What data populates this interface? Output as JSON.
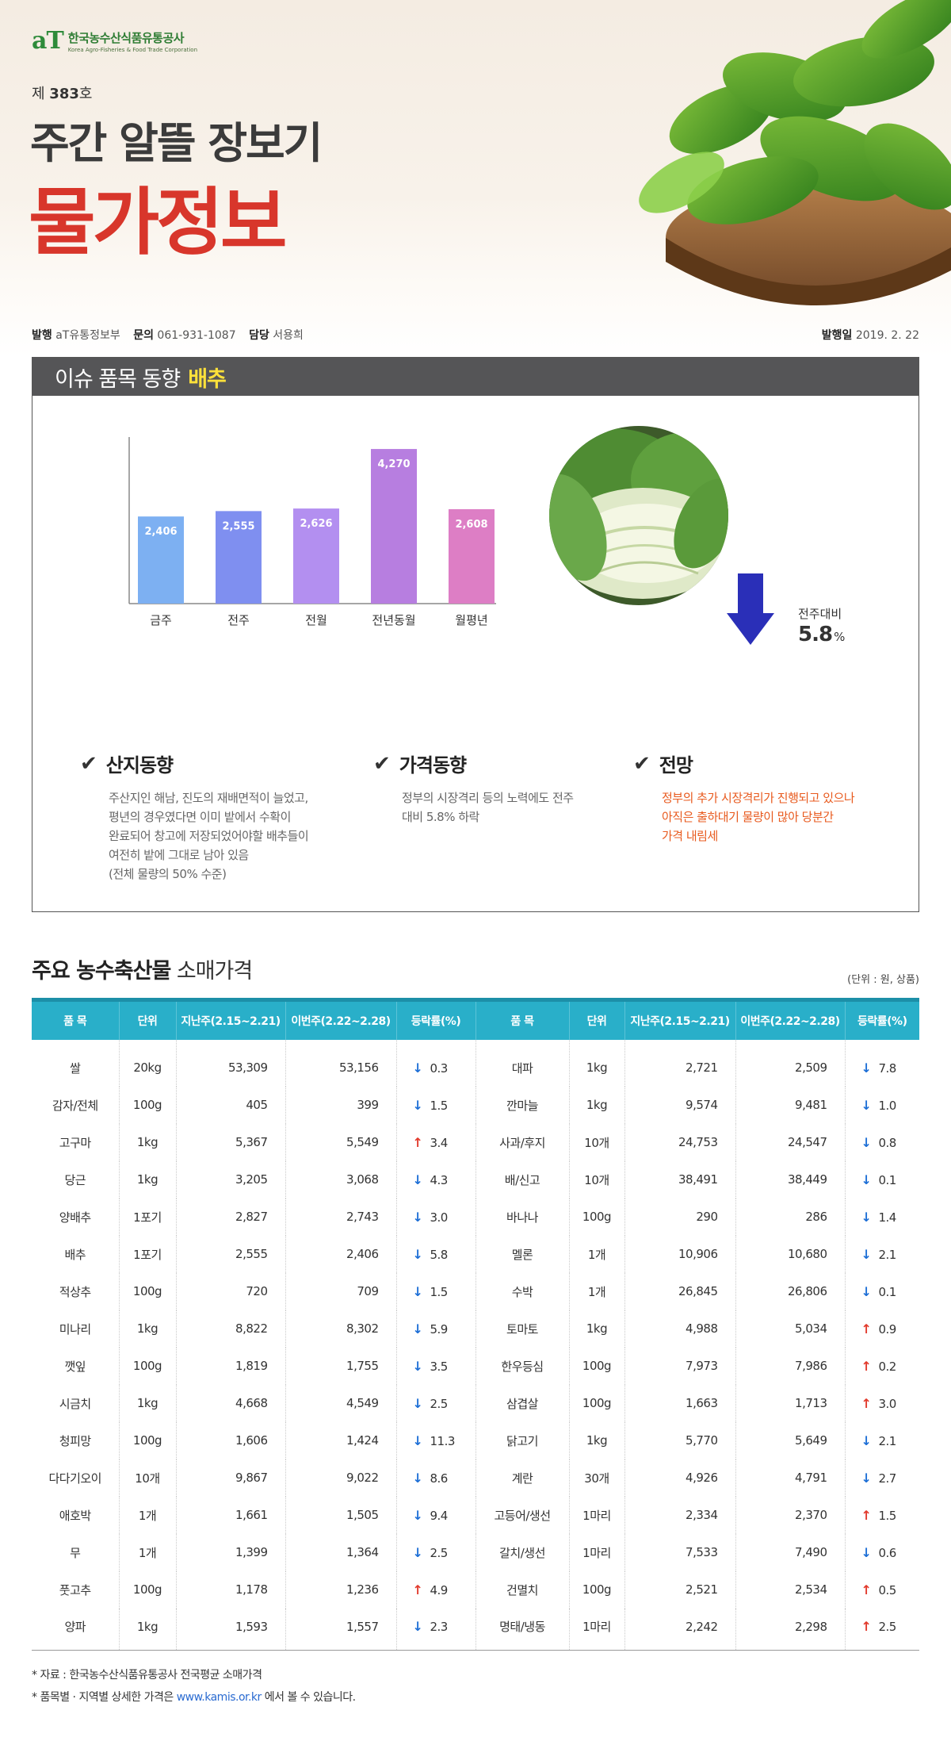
{
  "header": {
    "logo_mark": "aT",
    "logo_ko": "한국농수산식품유통공사",
    "logo_en": "Korea Agro-Fisheries & Food Trade Corporation",
    "issue_prefix": "제",
    "issue_number": "383",
    "issue_suffix": "호",
    "title": "주간 알뜰 장보기",
    "subtitle": "물가정보"
  },
  "pubinfo": {
    "publisher_label": "발행",
    "publisher": "aT유통정보부",
    "contact_label": "문의",
    "contact": "061-931-1087",
    "manager_label": "담당",
    "manager": "서용희",
    "date_label": "발행일",
    "date": "2019. 2. 22"
  },
  "issue": {
    "heading": "이슈 품목 동향",
    "item": "배추",
    "change_label": "전주대비",
    "change_value": "5.8",
    "change_unit": "%",
    "change_direction": "down",
    "blocks": [
      {
        "title": "산지동향",
        "body": "주산지인 해남, 진도의 재배면적이 늘었고,\n평년의 경우였다면 이미 밭에서 수확이\n완료되어 창고에 저장되었어야할 배추들이\n여전히 밭에 그대로 남아 있음\n(전체 물량의 50% 수준)"
      },
      {
        "title": "가격동향",
        "body": "정부의 시장격리 등의 노력에도 전주\n대비 5.8% 하락"
      },
      {
        "title": "전망",
        "body": "정부의 추가 시장격리가 진행되고 있으나\n아직은 출하대기 물량이 많아 당분간\n가격 내림세"
      }
    ]
  },
  "chart_data": {
    "type": "bar",
    "categories": [
      "금주",
      "전주",
      "전월",
      "전년동월",
      "월평년"
    ],
    "values": [
      2406,
      2555,
      2626,
      4270,
      2608
    ],
    "value_labels": [
      "2,406",
      "2,555",
      "2,626",
      "4,270",
      "2,608"
    ],
    "colors": [
      "#7db0f2",
      "#7f8ff0",
      "#b38ff0",
      "#b77ee0",
      "#dd7ec5"
    ],
    "title": "",
    "xlabel": "",
    "ylabel": "",
    "grid": false
  },
  "table": {
    "title_bold": "주요 농수축산물",
    "title_rest": "소매가격",
    "unit_note": "(단위 : 원, 상품)",
    "headers": [
      "품 목",
      "단위",
      "지난주(2.15~2.21)",
      "이번주(2.22~2.28)",
      "등락률(%)",
      "품 목",
      "단위",
      "지난주(2.15~2.21)",
      "이번주(2.22~2.28)",
      "등락률(%)"
    ],
    "rows": [
      {
        "l": {
          "name": "쌀",
          "unit": "20kg",
          "last": "53,309",
          "this": "53,156",
          "dir": "down",
          "rate": "0.3"
        },
        "r": {
          "name": "대파",
          "unit": "1kg",
          "last": "2,721",
          "this": "2,509",
          "dir": "down",
          "rate": "7.8"
        }
      },
      {
        "l": {
          "name": "감자/전체",
          "unit": "100g",
          "last": "405",
          "this": "399",
          "dir": "down",
          "rate": "1.5"
        },
        "r": {
          "name": "깐마늘",
          "unit": "1kg",
          "last": "9,574",
          "this": "9,481",
          "dir": "down",
          "rate": "1.0"
        }
      },
      {
        "l": {
          "name": "고구마",
          "unit": "1kg",
          "last": "5,367",
          "this": "5,549",
          "dir": "up",
          "rate": "3.4"
        },
        "r": {
          "name": "사과/후지",
          "unit": "10개",
          "last": "24,753",
          "this": "24,547",
          "dir": "down",
          "rate": "0.8"
        }
      },
      {
        "l": {
          "name": "당근",
          "unit": "1kg",
          "last": "3,205",
          "this": "3,068",
          "dir": "down",
          "rate": "4.3"
        },
        "r": {
          "name": "배/신고",
          "unit": "10개",
          "last": "38,491",
          "this": "38,449",
          "dir": "down",
          "rate": "0.1"
        }
      },
      {
        "l": {
          "name": "양배추",
          "unit": "1포기",
          "last": "2,827",
          "this": "2,743",
          "dir": "down",
          "rate": "3.0"
        },
        "r": {
          "name": "바나나",
          "unit": "100g",
          "last": "290",
          "this": "286",
          "dir": "down",
          "rate": "1.4"
        }
      },
      {
        "l": {
          "name": "배추",
          "unit": "1포기",
          "last": "2,555",
          "this": "2,406",
          "dir": "down",
          "rate": "5.8"
        },
        "r": {
          "name": "멜론",
          "unit": "1개",
          "last": "10,906",
          "this": "10,680",
          "dir": "down",
          "rate": "2.1"
        }
      },
      {
        "l": {
          "name": "적상추",
          "unit": "100g",
          "last": "720",
          "this": "709",
          "dir": "down",
          "rate": "1.5"
        },
        "r": {
          "name": "수박",
          "unit": "1개",
          "last": "26,845",
          "this": "26,806",
          "dir": "down",
          "rate": "0.1"
        }
      },
      {
        "l": {
          "name": "미나리",
          "unit": "1kg",
          "last": "8,822",
          "this": "8,302",
          "dir": "down",
          "rate": "5.9"
        },
        "r": {
          "name": "토마토",
          "unit": "1kg",
          "last": "4,988",
          "this": "5,034",
          "dir": "up",
          "rate": "0.9"
        }
      },
      {
        "l": {
          "name": "깻잎",
          "unit": "100g",
          "last": "1,819",
          "this": "1,755",
          "dir": "down",
          "rate": "3.5"
        },
        "r": {
          "name": "한우등심",
          "unit": "100g",
          "last": "7,973",
          "this": "7,986",
          "dir": "up",
          "rate": "0.2"
        }
      },
      {
        "l": {
          "name": "시금치",
          "unit": "1kg",
          "last": "4,668",
          "this": "4,549",
          "dir": "down",
          "rate": "2.5"
        },
        "r": {
          "name": "삼겹살",
          "unit": "100g",
          "last": "1,663",
          "this": "1,713",
          "dir": "up",
          "rate": "3.0"
        }
      },
      {
        "l": {
          "name": "청피망",
          "unit": "100g",
          "last": "1,606",
          "this": "1,424",
          "dir": "down",
          "rate": "11.3"
        },
        "r": {
          "name": "닭고기",
          "unit": "1kg",
          "last": "5,770",
          "this": "5,649",
          "dir": "down",
          "rate": "2.1"
        }
      },
      {
        "l": {
          "name": "다다기오이",
          "unit": "10개",
          "last": "9,867",
          "this": "9,022",
          "dir": "down",
          "rate": "8.6"
        },
        "r": {
          "name": "계란",
          "unit": "30개",
          "last": "4,926",
          "this": "4,791",
          "dir": "down",
          "rate": "2.7"
        }
      },
      {
        "l": {
          "name": "애호박",
          "unit": "1개",
          "last": "1,661",
          "this": "1,505",
          "dir": "down",
          "rate": "9.4"
        },
        "r": {
          "name": "고등어/생선",
          "unit": "1마리",
          "last": "2,334",
          "this": "2,370",
          "dir": "up",
          "rate": "1.5"
        }
      },
      {
        "l": {
          "name": "무",
          "unit": "1개",
          "last": "1,399",
          "this": "1,364",
          "dir": "down",
          "rate": "2.5"
        },
        "r": {
          "name": "갈치/생선",
          "unit": "1마리",
          "last": "7,533",
          "this": "7,490",
          "dir": "down",
          "rate": "0.6"
        }
      },
      {
        "l": {
          "name": "풋고추",
          "unit": "100g",
          "last": "1,178",
          "this": "1,236",
          "dir": "up",
          "rate": "4.9"
        },
        "r": {
          "name": "건멸치",
          "unit": "100g",
          "last": "2,521",
          "this": "2,534",
          "dir": "up",
          "rate": "0.5"
        }
      },
      {
        "l": {
          "name": "양파",
          "unit": "1kg",
          "last": "1,593",
          "this": "1,557",
          "dir": "down",
          "rate": "2.3"
        },
        "r": {
          "name": "명태/냉동",
          "unit": "1마리",
          "last": "2,242",
          "this": "2,298",
          "dir": "up",
          "rate": "2.5"
        }
      }
    ]
  },
  "footnotes": {
    "source": "* 자료 : 한국농수산식품유통공사 전국평균 소매가격",
    "more_pre": "* 품목별 · 지역별 상세한 가격은",
    "more_link": "www.kamis.or.kr",
    "more_post": "에서 볼 수 있습니다."
  },
  "icons": {
    "check": "check-icon",
    "down": "arrow-down-icon",
    "up": "arrow-up-icon"
  },
  "colors": {
    "title_red": "#d8362b",
    "panel_head": "#555557",
    "highlight_yellow": "#ffe13a",
    "table_head": "#29afc9",
    "down_blue": "#1e6fd6",
    "up_red": "#e23a2c",
    "forecast_orange": "#e85a1e"
  }
}
